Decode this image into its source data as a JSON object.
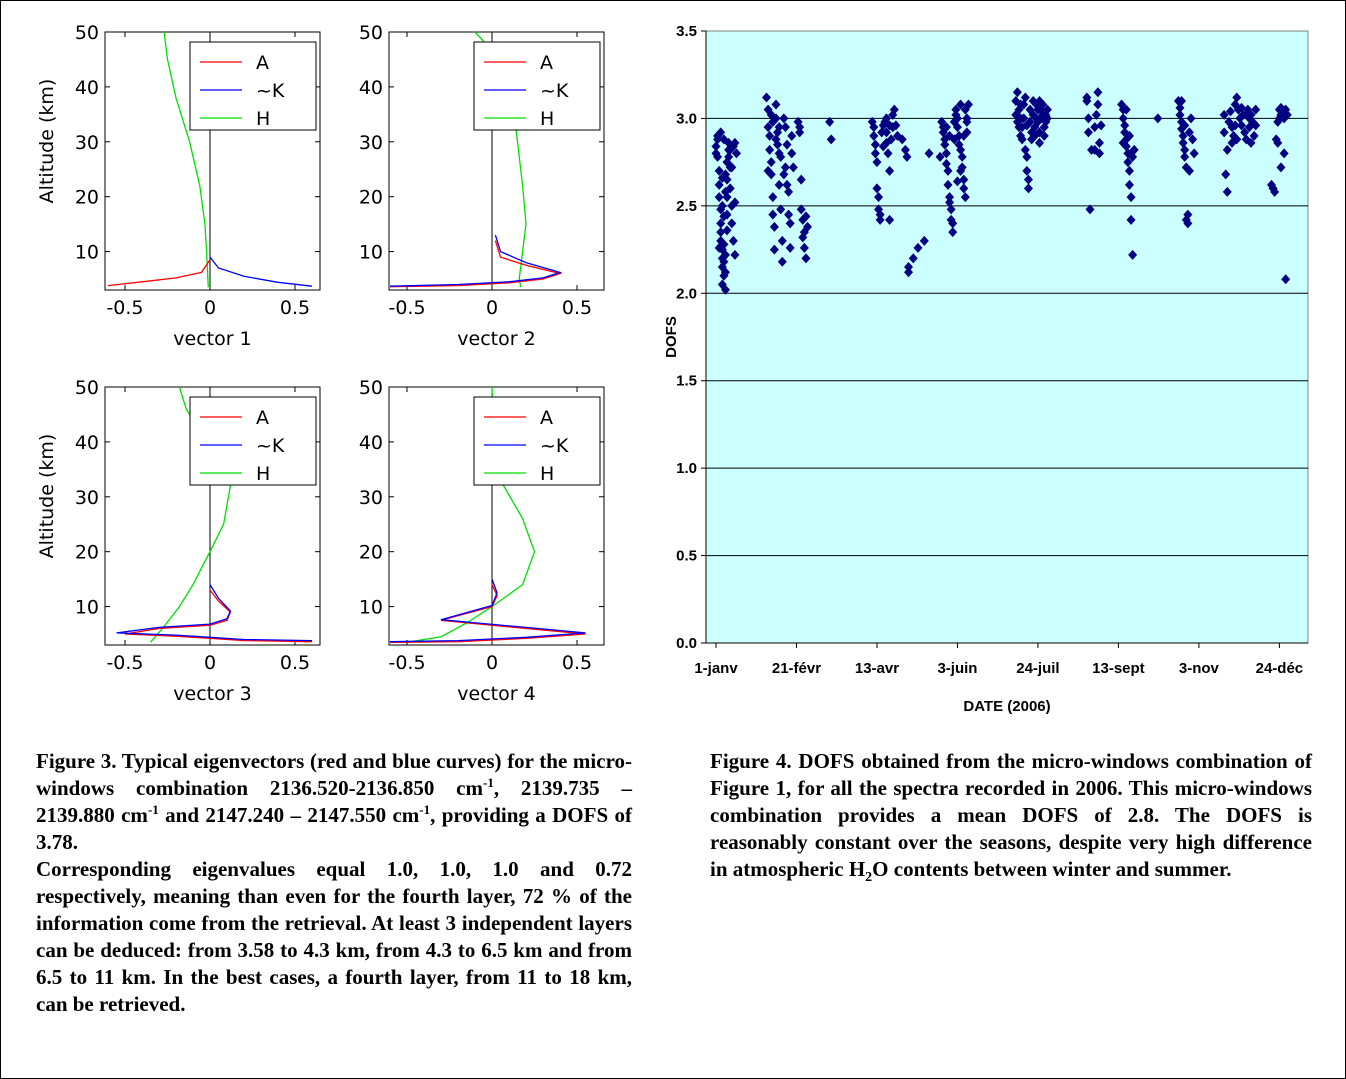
{
  "left_figure": {
    "xticks": [
      "-0.5",
      "0",
      "0.5"
    ],
    "yticks": [
      "50",
      "40",
      "30",
      "20",
      "10"
    ],
    "ylabel": "Altitude (km)",
    "legend": [
      "A",
      "~K",
      "H"
    ],
    "panel_labels": [
      "vector 1",
      "vector 2",
      "vector 3",
      "vector 4"
    ]
  },
  "chart_data": {
    "type": "scatter",
    "xlabel": "DATE (2006)",
    "ylabel": "DOFS",
    "ylim": [
      0,
      3.5
    ],
    "xticks": [
      "1-janv",
      "21-févr",
      "13-avr",
      "3-juin",
      "24-juil",
      "13-sept",
      "3-nov",
      "24-déc"
    ],
    "yticks": [
      "0.0",
      "0.5",
      "1.0",
      "1.5",
      "2.0",
      "2.5",
      "3.0",
      "3.5"
    ],
    "grid": true,
    "background": "#ccffff",
    "marker_color": "#000080",
    "x_unit": "day of year 2006",
    "points": [
      [
        0,
        2.8
      ],
      [
        0,
        2.84
      ],
      [
        1,
        2.78
      ],
      [
        1,
        2.88
      ],
      [
        1,
        2.9
      ],
      [
        2,
        2.7
      ],
      [
        2,
        2.62
      ],
      [
        2,
        2.55
      ],
      [
        3,
        2.48
      ],
      [
        3,
        2.4
      ],
      [
        3,
        2.35
      ],
      [
        3,
        2.3
      ],
      [
        4,
        2.25
      ],
      [
        4,
        2.2
      ],
      [
        4,
        2.15
      ],
      [
        4,
        2.05
      ],
      [
        5,
        2.1
      ],
      [
        5,
        2.18
      ],
      [
        5,
        2.28
      ],
      [
        6,
        2.02
      ],
      [
        6,
        2.12
      ],
      [
        6,
        2.22
      ],
      [
        7,
        2.45
      ],
      [
        7,
        2.55
      ],
      [
        7,
        2.65
      ],
      [
        7,
        2.75
      ],
      [
        8,
        2.82
      ],
      [
        8,
        2.86
      ],
      [
        9,
        2.72
      ],
      [
        9,
        2.6
      ],
      [
        10,
        2.5
      ],
      [
        10,
        2.4
      ],
      [
        11,
        2.3
      ],
      [
        12,
        2.22
      ],
      [
        3,
        2.92
      ],
      [
        5,
        2.88
      ],
      [
        8,
        2.78
      ],
      [
        4,
        2.66
      ],
      [
        6,
        2.58
      ],
      [
        9,
        2.82
      ],
      [
        11,
        2.84
      ],
      [
        12,
        2.86
      ],
      [
        5,
        2.44
      ],
      [
        7,
        2.36
      ],
      [
        2,
        2.26
      ],
      [
        13,
        2.8
      ],
      [
        12,
        2.52
      ],
      [
        10,
        2.72
      ],
      [
        6,
        2.68
      ],
      [
        4,
        2.5
      ],
      [
        32,
        3.12
      ],
      [
        33,
        3.05
      ],
      [
        33,
        2.95
      ],
      [
        34,
        2.9
      ],
      [
        34,
        2.82
      ],
      [
        35,
        2.75
      ],
      [
        35,
        2.68
      ],
      [
        36,
        2.55
      ],
      [
        36,
        2.45
      ],
      [
        37,
        2.38
      ],
      [
        37,
        2.25
      ],
      [
        38,
        3.08
      ],
      [
        38,
        3.0
      ],
      [
        39,
        2.92
      ],
      [
        39,
        2.85
      ],
      [
        40,
        2.8
      ],
      [
        40,
        2.62
      ],
      [
        41,
        2.48
      ],
      [
        42,
        2.3
      ],
      [
        42,
        2.18
      ],
      [
        43,
        3.0
      ],
      [
        44,
        2.95
      ],
      [
        44,
        2.72
      ],
      [
        45,
        2.62
      ],
      [
        46,
        2.58
      ],
      [
        46,
        2.45
      ],
      [
        47,
        2.4
      ],
      [
        47,
        2.26
      ],
      [
        48,
        2.9
      ],
      [
        48,
        2.8
      ],
      [
        49,
        2.72
      ],
      [
        33,
        2.7
      ],
      [
        35,
        3.02
      ],
      [
        36,
        2.98
      ],
      [
        38,
        2.88
      ],
      [
        40,
        2.95
      ],
      [
        41,
        2.78
      ],
      [
        43,
        2.68
      ],
      [
        45,
        2.85
      ],
      [
        52,
        2.98
      ],
      [
        53,
        2.95
      ],
      [
        54,
        2.65
      ],
      [
        54,
        2.48
      ],
      [
        55,
        2.42
      ],
      [
        56,
        2.35
      ],
      [
        56,
        2.26
      ],
      [
        57,
        2.2
      ],
      [
        57,
        2.44
      ],
      [
        58,
        2.38
      ],
      [
        53,
        2.92
      ],
      [
        55,
        2.32
      ],
      [
        72,
        2.98
      ],
      [
        73,
        2.88
      ],
      [
        99,
        2.98
      ],
      [
        100,
        2.95
      ],
      [
        100,
        2.9
      ],
      [
        101,
        2.85
      ],
      [
        101,
        2.8
      ],
      [
        102,
        2.75
      ],
      [
        102,
        2.6
      ],
      [
        103,
        2.55
      ],
      [
        103,
        2.48
      ],
      [
        104,
        2.45
      ],
      [
        104,
        2.42
      ],
      [
        105,
        2.92
      ],
      [
        106,
        2.96
      ],
      [
        107,
        2.98
      ],
      [
        108,
        3.0
      ],
      [
        108,
        2.86
      ],
      [
        109,
        2.8
      ],
      [
        110,
        2.7
      ],
      [
        110,
        2.42
      ],
      [
        111,
        2.88
      ],
      [
        112,
        2.95
      ],
      [
        112,
        3.02
      ],
      [
        113,
        3.05
      ],
      [
        114,
        2.96
      ],
      [
        115,
        2.9
      ],
      [
        106,
        2.84
      ],
      [
        108,
        2.92
      ],
      [
        110,
        2.96
      ],
      [
        118,
        2.88
      ],
      [
        120,
        2.82
      ],
      [
        121,
        2.78
      ],
      [
        122,
        2.15
      ],
      [
        122,
        2.12
      ],
      [
        125,
        2.2
      ],
      [
        128,
        2.26
      ],
      [
        132,
        2.3
      ],
      [
        135,
        2.8
      ],
      [
        142,
        2.78
      ],
      [
        143,
        2.98
      ],
      [
        144,
        2.95
      ],
      [
        144,
        2.92
      ],
      [
        145,
        2.88
      ],
      [
        145,
        2.85
      ],
      [
        146,
        2.8
      ],
      [
        146,
        2.74
      ],
      [
        147,
        2.7
      ],
      [
        147,
        2.62
      ],
      [
        148,
        2.55
      ],
      [
        148,
        2.52
      ],
      [
        149,
        2.48
      ],
      [
        149,
        2.42
      ],
      [
        150,
        2.4
      ],
      [
        150,
        2.35
      ],
      [
        151,
        2.98
      ],
      [
        152,
        3.02
      ],
      [
        152,
        3.05
      ],
      [
        153,
        3.0
      ],
      [
        153,
        2.95
      ],
      [
        154,
        2.9
      ],
      [
        154,
        2.85
      ],
      [
        155,
        3.08
      ],
      [
        155,
        2.82
      ],
      [
        156,
        2.78
      ],
      [
        156,
        2.72
      ],
      [
        157,
        2.65
      ],
      [
        157,
        2.6
      ],
      [
        158,
        2.55
      ],
      [
        158,
        3.05
      ],
      [
        159,
        3.0
      ],
      [
        159,
        2.98
      ],
      [
        160,
        3.08
      ],
      [
        151,
        2.88
      ],
      [
        153,
        2.64
      ],
      [
        155,
        2.7
      ],
      [
        157,
        2.9
      ],
      [
        159,
        2.92
      ],
      [
        146,
        2.95
      ],
      [
        148,
        2.9
      ],
      [
        190,
        3.02
      ],
      [
        190,
        3.1
      ],
      [
        191,
        3.15
      ],
      [
        191,
        2.98
      ],
      [
        192,
        2.95
      ],
      [
        192,
        3.05
      ],
      [
        193,
        3.08
      ],
      [
        193,
        2.9
      ],
      [
        194,
        2.88
      ],
      [
        194,
        2.95
      ],
      [
        195,
        3.0
      ],
      [
        195,
        3.08
      ],
      [
        196,
        3.12
      ],
      [
        196,
        2.82
      ],
      [
        197,
        2.78
      ],
      [
        197,
        2.7
      ],
      [
        198,
        2.65
      ],
      [
        198,
        2.6
      ],
      [
        199,
        3.05
      ],
      [
        199,
        2.98
      ],
      [
        200,
        2.92
      ],
      [
        200,
        2.88
      ],
      [
        201,
        3.1
      ],
      [
        201,
        3.02
      ],
      [
        202,
        2.95
      ],
      [
        202,
        2.9
      ],
      [
        203,
        3.0
      ],
      [
        203,
        3.08
      ],
      [
        204,
        3.05
      ],
      [
        204,
        2.98
      ],
      [
        205,
        2.92
      ],
      [
        205,
        2.86
      ],
      [
        206,
        3.0
      ],
      [
        206,
        3.05
      ],
      [
        207,
        3.08
      ],
      [
        207,
        3.02
      ],
      [
        208,
        2.95
      ],
      [
        208,
        2.9
      ],
      [
        209,
        2.98
      ],
      [
        209,
        3.02
      ],
      [
        210,
        3.05
      ],
      [
        210,
        3.0
      ],
      [
        193,
        3.0
      ],
      [
        197,
        2.96
      ],
      [
        201,
        2.92
      ],
      [
        205,
        3.1
      ],
      [
        235,
        3.12
      ],
      [
        235,
        3.1
      ],
      [
        236,
        2.92
      ],
      [
        237,
        2.48
      ],
      [
        238,
        2.82
      ],
      [
        240,
        2.95
      ],
      [
        241,
        3.02
      ],
      [
        242,
        3.08
      ],
      [
        242,
        3.15
      ],
      [
        243,
        2.86
      ],
      [
        243,
        2.8
      ],
      [
        244,
        2.96
      ],
      [
        236,
        3.0
      ],
      [
        240,
        2.82
      ],
      [
        257,
        3.08
      ],
      [
        258,
        3.05
      ],
      [
        258,
        3.0
      ],
      [
        259,
        2.96
      ],
      [
        259,
        2.92
      ],
      [
        260,
        2.88
      ],
      [
        260,
        2.84
      ],
      [
        261,
        2.8
      ],
      [
        261,
        2.75
      ],
      [
        262,
        2.7
      ],
      [
        262,
        2.62
      ],
      [
        263,
        2.55
      ],
      [
        263,
        2.42
      ],
      [
        264,
        2.22
      ],
      [
        264,
        2.78
      ],
      [
        265,
        2.82
      ],
      [
        258,
        2.86
      ],
      [
        260,
        3.05
      ],
      [
        262,
        2.9
      ],
      [
        263,
        2.8
      ],
      [
        280,
        3.0
      ],
      [
        293,
        3.1
      ],
      [
        294,
        3.06
      ],
      [
        294,
        3.02
      ],
      [
        295,
        2.98
      ],
      [
        295,
        2.94
      ],
      [
        296,
        2.9
      ],
      [
        296,
        2.86
      ],
      [
        297,
        2.82
      ],
      [
        297,
        2.78
      ],
      [
        298,
        2.72
      ],
      [
        298,
        2.42
      ],
      [
        299,
        2.4
      ],
      [
        299,
        2.45
      ],
      [
        300,
        2.92
      ],
      [
        301,
        3.0
      ],
      [
        302,
        2.88
      ],
      [
        303,
        2.8
      ],
      [
        295,
        3.1
      ],
      [
        297,
        2.96
      ],
      [
        300,
        2.7
      ],
      [
        322,
        3.02
      ],
      [
        322,
        2.92
      ],
      [
        323,
        2.68
      ],
      [
        324,
        2.58
      ],
      [
        325,
        2.98
      ],
      [
        326,
        3.04
      ],
      [
        327,
        2.95
      ],
      [
        328,
        2.9
      ],
      [
        329,
        3.08
      ],
      [
        330,
        3.12
      ],
      [
        330,
        2.88
      ],
      [
        331,
        3.05
      ],
      [
        332,
        3.0
      ],
      [
        333,
        2.96
      ],
      [
        334,
        3.02
      ],
      [
        335,
        2.92
      ],
      [
        336,
        2.88
      ],
      [
        337,
        3.05
      ],
      [
        338,
        3.0
      ],
      [
        338,
        2.95
      ],
      [
        339,
        3.02
      ],
      [
        340,
        2.98
      ],
      [
        341,
        2.9
      ],
      [
        342,
        3.05
      ],
      [
        324,
        2.82
      ],
      [
        327,
        2.86
      ],
      [
        329,
        2.96
      ],
      [
        333,
        3.06
      ],
      [
        336,
        3.02
      ],
      [
        339,
        2.86
      ],
      [
        342,
        2.96
      ],
      [
        352,
        2.62
      ],
      [
        353,
        2.6
      ],
      [
        354,
        2.58
      ],
      [
        355,
        2.88
      ],
      [
        356,
        2.86
      ],
      [
        357,
        3.05
      ],
      [
        357,
        3.0
      ],
      [
        358,
        3.02
      ],
      [
        358,
        2.72
      ],
      [
        359,
        3.05
      ],
      [
        360,
        3.0
      ],
      [
        360,
        2.8
      ],
      [
        361,
        3.05
      ],
      [
        361,
        2.08
      ],
      [
        362,
        3.02
      ],
      [
        356,
        2.98
      ],
      [
        358,
        3.06
      ]
    ]
  },
  "captions": {
    "fig3": {
      "line1": "Figure 3. Typical eigenvectors (red and blue curves) for the micro-windows combination 2136.520-2136.850 cm",
      "sup1": "-1",
      "seg2": ", 2139.735 – 2139.880 cm",
      "sup2": "-1",
      "seg3": " and 2147.240 – 2147.550 cm",
      "sup3": "-1",
      "seg4": ", providing a DOFS of 3.78.",
      "para2": "Corresponding eigenvalues equal 1.0, 1.0, 1.0 and 0.72 respectively, meaning than even for the fourth layer, 72 % of the information come from the retrieval.  At least 3 independent layers can be deduced: from 3.58 to 4.3 km, from 4.3 to 6.5 km and from 6.5 to 11 km.  In the best cases, a fourth layer, from 11 to 18 km, can be retrieved."
    },
    "fig4": {
      "seg1": "Figure 4.  DOFS obtained from the micro-windows combination of Figure 1, for all the spectra recorded in 2006.  This micro-windows combination provides a mean DOFS of 2.8.  The DOFS is reasonably constant over the seasons, despite very high difference in atmospheric  H",
      "sub": "2",
      "seg2": "O  contents  between  winter  and summer."
    }
  }
}
